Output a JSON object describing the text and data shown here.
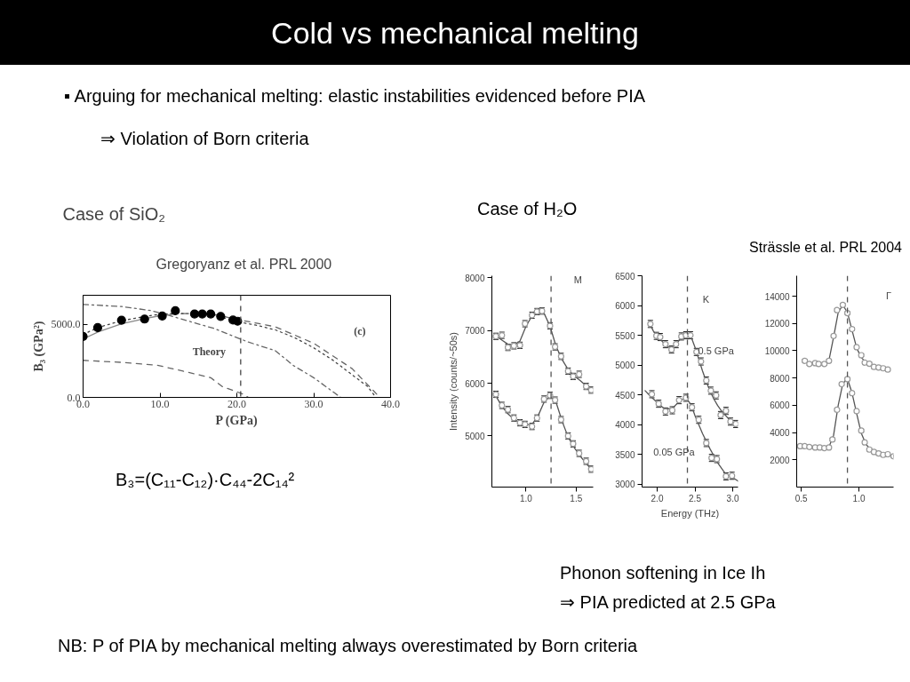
{
  "chart_data": [
    {
      "type": "other",
      "title": "Cold vs mechanical melting",
      "annotations": [
        "▪ Arguing for mechanical melting: elastic instabilities evidenced before PIA",
        "⇒ Violation of Born criteria",
        "Case of H₂O",
        "Strässle et al. PRL 2004",
        "B₃=(C₁₁-C₁₂)·C₄₄-2C₁₄²",
        "Phonon softening in Ice Ih",
        "⇒ PIA predicted at 2.5 GPa",
        "NB: P of PIA by mechanical melting always overestimated by Born criteria"
      ]
    },
    {
      "type": "line",
      "title": "Case of SiO₂",
      "subtitle": "Gregoryanz et al. PRL 2000",
      "xlabel": "P (GPa)",
      "ylabel": "B₃ (GPa²)",
      "xlim": [
        0,
        40
      ],
      "ylim": [
        0,
        7000
      ],
      "xticks": [
        {
          "value": 0,
          "label": "0.0"
        },
        {
          "value": 10,
          "label": "10.0"
        },
        {
          "value": 20,
          "label": "20.0"
        },
        {
          "value": 30,
          "label": "30.0"
        },
        {
          "value": 40,
          "label": "40.0"
        }
      ],
      "yticks": [
        {
          "value": 0,
          "label": "0.0"
        },
        {
          "value": 5000,
          "label": "5000.0"
        }
      ],
      "grid": false,
      "series": [
        {
          "type": "line",
          "line_style": "dashdot",
          "color": "#666666",
          "x": [
            0,
            5,
            8.8,
            11,
            14.3,
            17,
            21.4,
            25,
            27.4,
            30,
            33.5
          ],
          "values": [
            6370,
            6230,
            5950,
            5650,
            5140,
            4730,
            3810,
            3200,
            2170,
            1350,
            0
          ]
        },
        {
          "type": "line",
          "line_style": "dashed",
          "color": "#666666",
          "x": [
            10,
            14,
            17,
            20,
            25,
            30,
            35,
            38.6
          ],
          "values": [
            5750,
            5750,
            5700,
            5350,
            4840,
            3710,
            1970,
            0
          ]
        },
        {
          "type": "line",
          "line_style": "dashed",
          "color": "#666666",
          "x": [
            0,
            5,
            9.6,
            13,
            16.6,
            18.1,
            20.8,
            21.5
          ],
          "values": [
            2540,
            2400,
            2210,
            1800,
            1350,
            740,
            230,
            0
          ]
        },
        {
          "type": "line",
          "line_style": "solid",
          "color": "#888888",
          "x": [
            0,
            2,
            5,
            8,
            10,
            12
          ],
          "values": [
            4000,
            4500,
            5050,
            5400,
            5600,
            5720
          ]
        },
        {
          "type": "line",
          "line_style": "dotted",
          "color": "#444444",
          "x": [
            0,
            2,
            5,
            8,
            10,
            12,
            15,
            17,
            20,
            22.5,
            25,
            27.5,
            30,
            32.5,
            35,
            37,
            38.1
          ],
          "values": [
            4320,
            4800,
            5250,
            5550,
            5700,
            5750,
            5750,
            5650,
            5200,
            4950,
            4630,
            4100,
            3400,
            2550,
            1550,
            750,
            0
          ]
        },
        {
          "type": "scatter",
          "marker": "circle",
          "color": "#000000",
          "x": [
            0,
            1.9,
            5,
            8,
            10.3,
            12,
            14.5,
            15.5,
            16.6,
            17.9,
            19.5,
            20.1
          ],
          "values": [
            4180,
            4780,
            5290,
            5370,
            5580,
            5940,
            5720,
            5720,
            5720,
            5550,
            5300,
            5220
          ]
        }
      ],
      "ref_lines": [
        {
          "axis": "x",
          "value": 20.5,
          "line_style": "dashed",
          "color": "#444444"
        }
      ],
      "annotations": [
        "(c)",
        "Theory"
      ]
    },
    {
      "type": "scatter",
      "ylabel": "Intensity (counts/~50s)",
      "xlim": [
        0.66,
        1.67
      ],
      "ylim": [
        4030,
        8040
      ],
      "xticks": [
        {
          "value": 1,
          "label": "1.0"
        },
        {
          "value": 1.5,
          "label": "1.5"
        }
      ],
      "yticks": [
        5000,
        6000,
        7000,
        8000
      ],
      "grid": false,
      "series": [
        {
          "type": "line",
          "color": "#555555",
          "x": [
            0.7,
            0.76,
            0.82,
            0.88,
            0.94,
            1.0,
            1.06,
            1.12,
            1.18,
            1.24,
            1.3,
            1.36,
            1.42,
            1.48,
            1.54,
            1.6,
            1.65
          ],
          "values": [
            6900,
            6820,
            6740,
            6720,
            6800,
            7080,
            7280,
            7370,
            7330,
            7080,
            6700,
            6450,
            6260,
            6140,
            6050,
            5950,
            5870
          ]
        },
        {
          "type": "line",
          "color": "#555555",
          "x": [
            0.7,
            0.76,
            0.82,
            0.88,
            0.94,
            1.0,
            1.06,
            1.12,
            1.18,
            1.24,
            1.3,
            1.36,
            1.42,
            1.48,
            1.54,
            1.6,
            1.65
          ],
          "values": [
            5760,
            5560,
            5420,
            5320,
            5250,
            5210,
            5220,
            5380,
            5640,
            5760,
            5640,
            5280,
            4980,
            4780,
            4620,
            4480,
            4370
          ]
        },
        {
          "type": "scatter",
          "marker": "circle",
          "color": "#999999",
          "x": [
            0.7,
            0.76,
            0.82,
            0.88,
            0.94,
            0.99,
            1.06,
            1.11,
            1.16,
            1.24,
            1.29,
            1.35,
            1.42,
            1.47,
            1.53,
            1.6,
            1.65
          ],
          "values": [
            6890,
            6910,
            6680,
            6710,
            6720,
            7130,
            7290,
            7360,
            7370,
            7090,
            6690,
            6510,
            6230,
            6130,
            6170,
            5940,
            5870
          ],
          "errors": [
            60,
            60,
            60,
            60,
            60,
            60,
            60,
            60,
            60,
            60,
            60,
            60,
            60,
            60,
            60,
            60,
            60
          ]
        },
        {
          "type": "scatter",
          "marker": "circle",
          "color": "#999999",
          "x": [
            0.7,
            0.76,
            0.82,
            0.88,
            0.94,
            0.99,
            1.06,
            1.11,
            1.18,
            1.24,
            1.29,
            1.35,
            1.42,
            1.47,
            1.53,
            1.6,
            1.65
          ],
          "values": [
            5790,
            5580,
            5500,
            5340,
            5250,
            5220,
            5180,
            5340,
            5700,
            5770,
            5680,
            5310,
            5000,
            4850,
            4670,
            4520,
            4370
          ],
          "errors": [
            60,
            60,
            60,
            60,
            60,
            60,
            60,
            60,
            60,
            60,
            60,
            60,
            60,
            60,
            60,
            60,
            60
          ]
        }
      ],
      "ref_lines": [
        {
          "axis": "x",
          "value": 1.25,
          "line_style": "dashed",
          "color": "#555555"
        }
      ],
      "annotations": [
        "M"
      ]
    },
    {
      "type": "scatter",
      "xlabel": "Energy (THz)",
      "xlim": [
        1.8,
        3.07
      ],
      "ylim": [
        2950,
        6500
      ],
      "xticks": [
        {
          "value": 2,
          "label": "2.0"
        },
        {
          "value": 2.5,
          "label": "2.5"
        },
        {
          "value": 3,
          "label": "3.0"
        }
      ],
      "yticks": [
        3000,
        3500,
        4000,
        4500,
        5000,
        5500,
        6000,
        6500
      ],
      "grid": false,
      "series": [
        {
          "type": "line",
          "color": "#555555",
          "x": [
            1.9,
            1.95,
            2.0,
            2.05,
            2.1,
            2.15,
            2.2,
            2.25,
            2.3,
            2.35,
            2.4,
            2.45,
            2.5,
            2.55,
            2.6,
            2.65,
            2.7,
            2.75,
            2.8,
            2.85,
            2.9,
            2.95,
            3.0,
            3.04
          ],
          "values": [
            5700,
            5570,
            5480,
            5420,
            5350,
            5300,
            5300,
            5350,
            5430,
            5490,
            5510,
            5470,
            5300,
            5100,
            4900,
            4720,
            4560,
            4430,
            4320,
            4230,
            4160,
            4090,
            4030,
            4000
          ]
        },
        {
          "type": "line",
          "color": "#555555",
          "x": [
            1.84,
            1.9,
            2.0,
            2.1,
            2.2,
            2.3,
            2.38,
            2.45,
            2.5,
            2.6,
            2.7,
            2.8,
            2.9,
            3.0,
            3.07
          ],
          "values": [
            4570,
            4490,
            4370,
            4260,
            4270,
            4400,
            4450,
            4330,
            4150,
            3850,
            3590,
            3360,
            3180,
            3110,
            3050
          ]
        },
        {
          "type": "scatter",
          "marker": "circle",
          "color": "#999999",
          "x": [
            1.91,
            1.99,
            2.04,
            2.11,
            2.19,
            2.25,
            2.32,
            2.38,
            2.44,
            2.52,
            2.58,
            2.65,
            2.71,
            2.78,
            2.84,
            2.91,
            2.97,
            3.04
          ],
          "values": [
            5690,
            5490,
            5470,
            5350,
            5260,
            5350,
            5480,
            5500,
            5500,
            5220,
            5060,
            4740,
            4570,
            4490,
            4160,
            4230,
            4050,
            4010
          ],
          "errors": [
            60,
            60,
            60,
            60,
            60,
            60,
            60,
            60,
            60,
            60,
            60,
            60,
            60,
            60,
            60,
            60,
            60,
            60
          ]
        },
        {
          "type": "scatter",
          "marker": "circle",
          "color": "#999999",
          "x": [
            1.93,
            2.02,
            2.11,
            2.2,
            2.29,
            2.38,
            2.46,
            2.55,
            2.65,
            2.72,
            2.79,
            2.91,
            2.99
          ],
          "values": [
            4510,
            4350,
            4220,
            4240,
            4410,
            4450,
            4290,
            4080,
            3690,
            3440,
            3420,
            3130,
            3140
          ],
          "errors": [
            60,
            60,
            60,
            60,
            60,
            60,
            60,
            60,
            60,
            60,
            60,
            60,
            60
          ]
        }
      ],
      "ref_lines": [
        {
          "axis": "x",
          "value": 2.4,
          "line_style": "dashed",
          "color": "#555555"
        }
      ],
      "annotations": [
        "K",
        "0.5 GPa",
        "0.05 GPa"
      ]
    },
    {
      "type": "scatter",
      "xlim": [
        0.46,
        1.3
      ],
      "ylim": [
        0,
        15500
      ],
      "xticks": [
        {
          "value": 0.5,
          "label": "0.5"
        },
        {
          "value": 1,
          "label": "1.0"
        }
      ],
      "yticks": [
        2000,
        4000,
        6000,
        8000,
        10000,
        12000,
        14000
      ],
      "grid": false,
      "series": [
        {
          "type": "line",
          "color": "#555555",
          "x": [
            0.52,
            0.6,
            0.7,
            0.74,
            0.78,
            0.82,
            0.86,
            0.9,
            0.94,
            0.98,
            1.02,
            1.06,
            1.1,
            1.15,
            1.2,
            1.26
          ],
          "values": [
            9250,
            9080,
            9050,
            9300,
            11000,
            12800,
            13350,
            12800,
            11500,
            10200,
            9500,
            9150,
            8950,
            8800,
            8700,
            8600
          ]
        },
        {
          "type": "line",
          "color": "#555555",
          "x": [
            0.47,
            0.55,
            0.62,
            0.7,
            0.74,
            0.78,
            0.82,
            0.86,
            0.9,
            0.94,
            0.98,
            1.02,
            1.06,
            1.1,
            1.15,
            1.2,
            1.25,
            1.3
          ],
          "values": [
            3000,
            2980,
            2920,
            2870,
            2950,
            3800,
            6000,
            7600,
            7950,
            6900,
            5400,
            3950,
            3150,
            2750,
            2520,
            2400,
            2380,
            2280
          ]
        },
        {
          "type": "scatter",
          "marker": "circle",
          "color": "#999999",
          "x": [
            0.53,
            0.57,
            0.62,
            0.65,
            0.7,
            0.74,
            0.78,
            0.81,
            0.86,
            0.9,
            0.94,
            0.98,
            1.02,
            1.05,
            1.09,
            1.13,
            1.17,
            1.21,
            1.25
          ],
          "values": [
            9260,
            9030,
            9090,
            9030,
            9030,
            9260,
            11080,
            12980,
            13360,
            12760,
            11590,
            10260,
            9670,
            9130,
            9050,
            8810,
            8770,
            8710,
            8620
          ],
          "errors": [
            100,
            100,
            100,
            100,
            100,
            100,
            100,
            100,
            100,
            100,
            100,
            100,
            100,
            100,
            100,
            100,
            100,
            100,
            100
          ]
        },
        {
          "type": "scatter",
          "marker": "circle",
          "color": "#999999",
          "x": [
            0.49,
            0.53,
            0.57,
            0.62,
            0.66,
            0.7,
            0.74,
            0.77,
            0.81,
            0.85,
            0.9,
            0.94,
            0.98,
            1.02,
            1.05,
            1.09,
            1.13,
            1.17,
            1.21,
            1.25,
            1.3
          ],
          "values": [
            3000,
            3000,
            2940,
            2900,
            2900,
            2860,
            2900,
            3490,
            5670,
            7550,
            7920,
            6890,
            5570,
            4140,
            3280,
            2750,
            2580,
            2470,
            2360,
            2410,
            2260
          ],
          "errors": [
            100,
            100,
            100,
            100,
            100,
            100,
            100,
            100,
            100,
            100,
            100,
            100,
            100,
            100,
            100,
            100,
            100,
            100,
            100,
            100,
            100
          ]
        }
      ],
      "ref_lines": [
        {
          "axis": "x",
          "value": 0.9,
          "line_style": "dashed",
          "color": "#555555"
        }
      ],
      "annotations": [
        "Γ"
      ]
    }
  ]
}
